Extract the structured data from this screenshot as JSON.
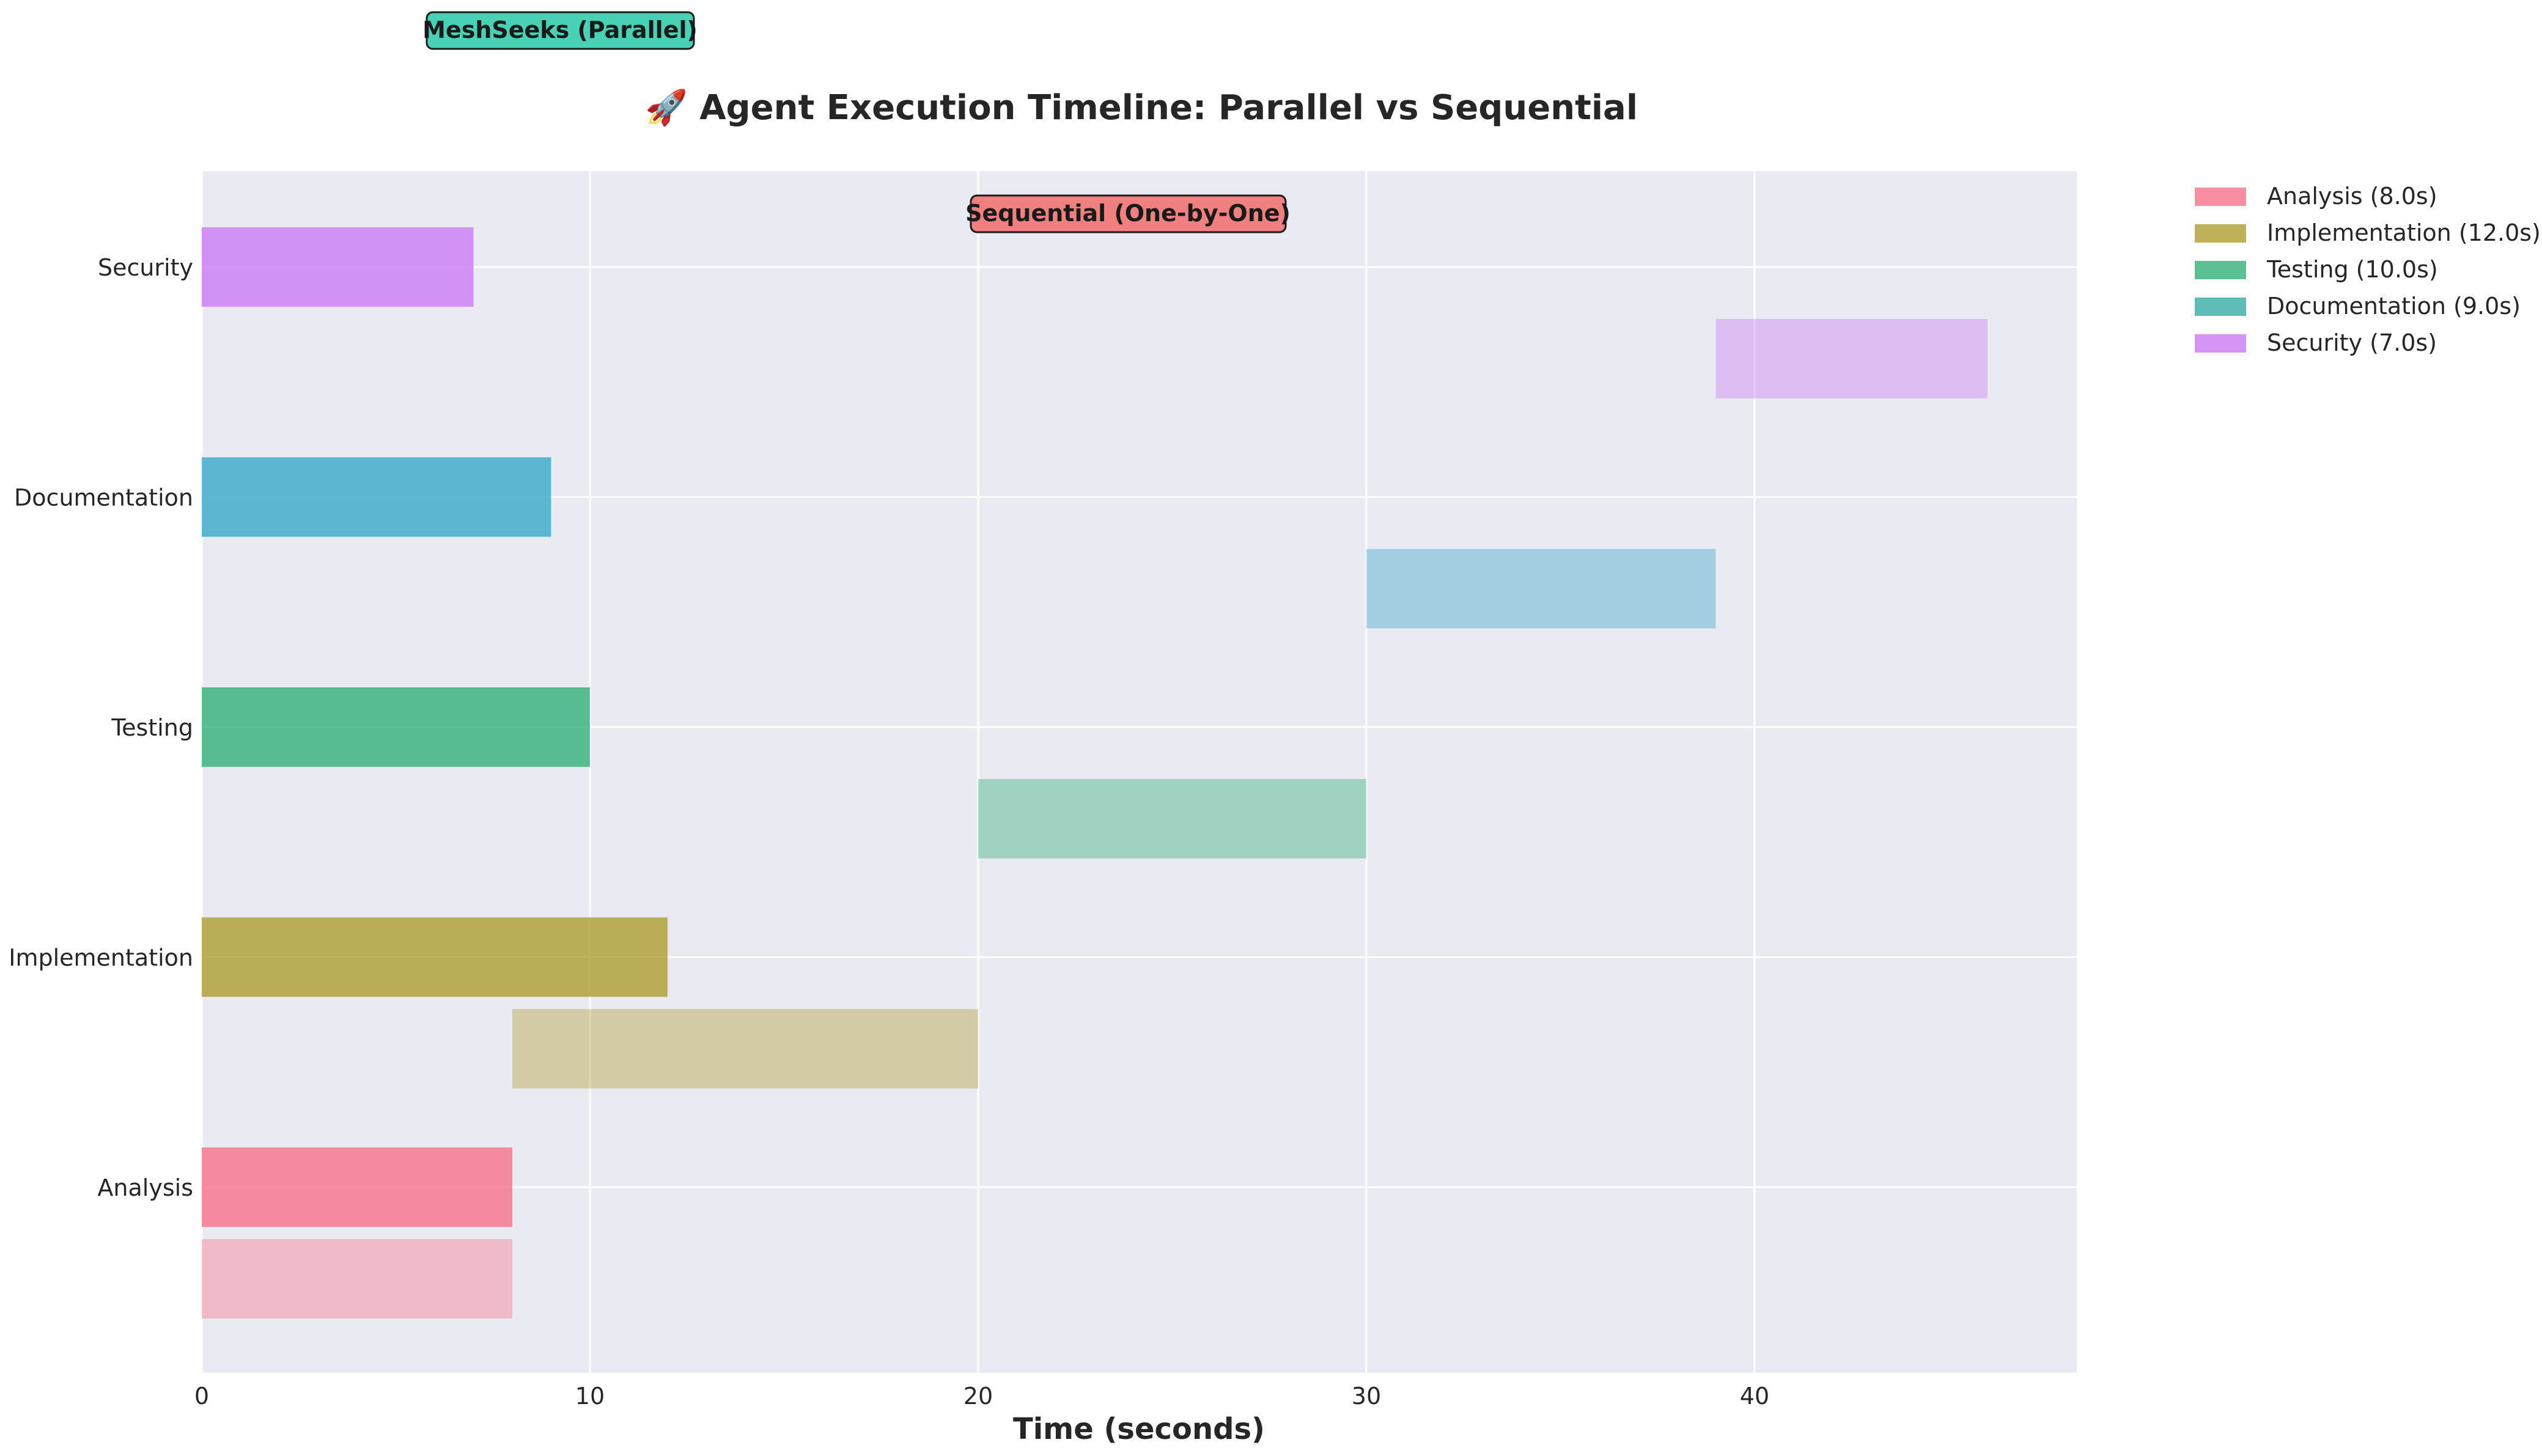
{
  "chart_data": {
    "type": "bar",
    "orientation": "horizontal",
    "title": "🚀 Agent Execution Timeline: Parallel vs Sequential",
    "xlabel": "Time (seconds)",
    "ylabel": "",
    "xlim": [
      0,
      48.3
    ],
    "xticks": [
      0,
      10,
      20,
      30,
      40
    ],
    "categories": [
      "Analysis",
      "Implementation",
      "Testing",
      "Documentation",
      "Security"
    ],
    "grid": true,
    "legend_placement": "outside-right-top",
    "legend": [
      {
        "label": "Analysis (8.0s)",
        "color": "#f77189"
      },
      {
        "label": "Implementation (12.0s)",
        "color": "#ae9d31"
      },
      {
        "label": "Testing (10.0s)",
        "color": "#33b07a"
      },
      {
        "label": "Documentation (9.0s)",
        "color": "#36ada4"
      },
      {
        "label": "Security (7.0s)",
        "color": "#cc7af4"
      }
    ],
    "series": [
      {
        "name": "MeshSeeks (Parallel)",
        "start": [
          0,
          0,
          0,
          0,
          0
        ],
        "duration": [
          8,
          12,
          10,
          9,
          7
        ]
      },
      {
        "name": "Sequential (One-by-One)",
        "start": [
          0,
          8,
          20,
          30,
          39
        ],
        "duration": [
          8,
          12,
          10,
          9,
          7
        ]
      }
    ],
    "colors": {
      "Analysis": "#f77189",
      "Implementation": "#ae9d31",
      "Testing": "#33b07a",
      "Documentation": "#38a8c8",
      "Security": "#cc7af4"
    },
    "annotations": {
      "parallel": {
        "text": "MeshSeeks (Parallel)",
        "color": "#48d1b4"
      },
      "sequential": {
        "text": "Sequential (One-by-One)",
        "color": "#f08080"
      }
    }
  }
}
